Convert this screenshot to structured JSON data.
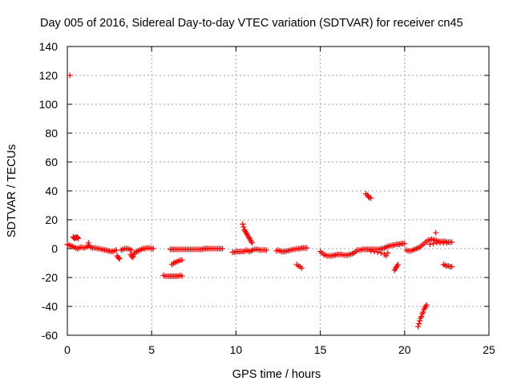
{
  "chart_data": {
    "type": "scatter",
    "title": "Day 005 of 2016, Sidereal Day-to-day VTEC variation (SDTVAR) for receiver cn45",
    "xlabel": "GPS time / hours",
    "ylabel": "SDTVAR / TECUs",
    "xlim": [
      0,
      25
    ],
    "ylim": [
      -60,
      140
    ],
    "xticks": [
      "0",
      "5",
      "10",
      "15",
      "20",
      "25"
    ],
    "yticks": [
      "-60",
      "-40",
      "-20",
      "0",
      "20",
      "40",
      "60",
      "80",
      "100",
      "120",
      "140"
    ],
    "grid": true,
    "legend": "none",
    "series": [
      {
        "color": "#ff0000",
        "marker": "plus",
        "points": [
          [
            0.0,
            3
          ],
          [
            0.1,
            2.5
          ],
          [
            0.15,
            120
          ],
          [
            0.2,
            2
          ],
          [
            0.3,
            1.5
          ],
          [
            0.35,
            8
          ],
          [
            0.4,
            7.5
          ],
          [
            0.45,
            7
          ],
          [
            0.5,
            8
          ],
          [
            0.55,
            7.5
          ],
          [
            0.6,
            8
          ],
          [
            0.65,
            7
          ],
          [
            0.4,
            1
          ],
          [
            0.5,
            0.5
          ],
          [
            0.6,
            0
          ],
          [
            0.7,
            0.5
          ],
          [
            0.8,
            1
          ],
          [
            0.9,
            1
          ],
          [
            1.0,
            0.5
          ],
          [
            1.1,
            1
          ],
          [
            1.2,
            1.5
          ],
          [
            1.3,
            2
          ],
          [
            1.25,
            4
          ],
          [
            1.4,
            1
          ],
          [
            1.5,
            0.5
          ],
          [
            1.6,
            0.5
          ],
          [
            1.7,
            0.5
          ],
          [
            1.8,
            0
          ],
          [
            1.9,
            0
          ],
          [
            2.0,
            -0.5
          ],
          [
            2.1,
            -0.5
          ],
          [
            2.2,
            -1
          ],
          [
            2.3,
            -1
          ],
          [
            2.4,
            -1.5
          ],
          [
            2.5,
            -1.5
          ],
          [
            2.6,
            -2
          ],
          [
            2.7,
            -2
          ],
          [
            2.8,
            -1.5
          ],
          [
            2.9,
            -1
          ],
          [
            2.95,
            -5
          ],
          [
            3.0,
            -6
          ],
          [
            3.05,
            -6.5
          ],
          [
            3.1,
            -7
          ],
          [
            3.2,
            -1
          ],
          [
            3.3,
            -0.5
          ],
          [
            3.4,
            0
          ],
          [
            3.5,
            0
          ],
          [
            3.6,
            0
          ],
          [
            3.7,
            -0.5
          ],
          [
            3.8,
            -1
          ],
          [
            3.75,
            -4
          ],
          [
            3.8,
            -5
          ],
          [
            3.85,
            -6
          ],
          [
            3.9,
            -5.5
          ],
          [
            3.95,
            -4
          ],
          [
            4.0,
            -3
          ],
          [
            4.1,
            -2
          ],
          [
            4.2,
            -1.5
          ],
          [
            4.3,
            -1
          ],
          [
            4.4,
            -0.5
          ],
          [
            4.5,
            0
          ],
          [
            4.6,
            0
          ],
          [
            4.7,
            0.5
          ],
          [
            4.8,
            0.5
          ],
          [
            4.9,
            0.5
          ],
          [
            5.0,
            0
          ],
          [
            5.1,
            0
          ],
          [
            5.7,
            -18.5
          ],
          [
            5.8,
            -19
          ],
          [
            5.9,
            -19
          ],
          [
            6.0,
            -19
          ],
          [
            6.1,
            -19
          ],
          [
            6.2,
            -19
          ],
          [
            6.3,
            -19
          ],
          [
            6.4,
            -19
          ],
          [
            6.5,
            -19
          ],
          [
            6.6,
            -19
          ],
          [
            6.7,
            -18.5
          ],
          [
            6.8,
            -19
          ],
          [
            6.2,
            -11
          ],
          [
            6.3,
            -10
          ],
          [
            6.4,
            -9.5
          ],
          [
            6.5,
            -9
          ],
          [
            6.6,
            -8.5
          ],
          [
            6.7,
            -8
          ],
          [
            6.8,
            -8
          ],
          [
            6.1,
            -0.5
          ],
          [
            6.2,
            -0.5
          ],
          [
            6.3,
            -0.5
          ],
          [
            6.4,
            -0.5
          ],
          [
            6.5,
            -0.5
          ],
          [
            6.6,
            -0.5
          ],
          [
            6.7,
            -0.5
          ],
          [
            6.8,
            -0.5
          ],
          [
            6.9,
            -0.5
          ],
          [
            7.0,
            -0.5
          ],
          [
            7.1,
            -0.5
          ],
          [
            7.2,
            -0.5
          ],
          [
            7.3,
            -0.5
          ],
          [
            7.4,
            -0.5
          ],
          [
            7.5,
            -0.5
          ],
          [
            7.6,
            -0.5
          ],
          [
            7.7,
            -0.5
          ],
          [
            7.8,
            -0.5
          ],
          [
            7.9,
            -0.5
          ],
          [
            8.0,
            -0.5
          ],
          [
            8.1,
            0
          ],
          [
            8.2,
            0
          ],
          [
            8.3,
            0
          ],
          [
            8.4,
            0
          ],
          [
            8.5,
            0
          ],
          [
            8.6,
            0
          ],
          [
            8.7,
            0
          ],
          [
            8.8,
            0
          ],
          [
            8.9,
            0
          ],
          [
            9.0,
            0
          ],
          [
            9.1,
            0
          ],
          [
            9.2,
            0
          ],
          [
            9.8,
            -2.5
          ],
          [
            9.9,
            -2.5
          ],
          [
            10.0,
            -2
          ],
          [
            10.1,
            -2
          ],
          [
            10.2,
            -2
          ],
          [
            10.3,
            -2
          ],
          [
            10.4,
            -2
          ],
          [
            10.5,
            -2
          ],
          [
            10.4,
            17
          ],
          [
            10.45,
            15
          ],
          [
            10.5,
            13
          ],
          [
            10.55,
            12
          ],
          [
            10.6,
            11
          ],
          [
            10.65,
            10
          ],
          [
            10.7,
            9
          ],
          [
            10.75,
            8
          ],
          [
            10.8,
            7
          ],
          [
            10.85,
            6
          ],
          [
            10.9,
            5
          ],
          [
            10.95,
            4
          ],
          [
            10.6,
            -1
          ],
          [
            10.7,
            -1.5
          ],
          [
            10.8,
            -2
          ],
          [
            10.9,
            -1.5
          ],
          [
            11.0,
            -1
          ],
          [
            11.1,
            -0.5
          ],
          [
            11.2,
            -0.5
          ],
          [
            11.3,
            -0.5
          ],
          [
            11.4,
            -1
          ],
          [
            11.5,
            -1
          ],
          [
            11.6,
            -1
          ],
          [
            11.7,
            -1
          ],
          [
            11.8,
            -1
          ],
          [
            12.4,
            -1.5
          ],
          [
            12.5,
            -1
          ],
          [
            12.6,
            -1.5
          ],
          [
            12.7,
            -2
          ],
          [
            12.8,
            -2
          ],
          [
            12.9,
            -2
          ],
          [
            13.0,
            -1.5
          ],
          [
            13.1,
            -1.5
          ],
          [
            13.2,
            -1
          ],
          [
            13.3,
            -1
          ],
          [
            13.4,
            -0.5
          ],
          [
            13.5,
            -0.5
          ],
          [
            13.6,
            0
          ],
          [
            13.7,
            0
          ],
          [
            13.8,
            0
          ],
          [
            13.9,
            0.5
          ],
          [
            14.0,
            0.5
          ],
          [
            14.1,
            0.5
          ],
          [
            14.2,
            0.5
          ],
          [
            13.6,
            -11
          ],
          [
            13.7,
            -12
          ],
          [
            13.8,
            -12.5
          ],
          [
            13.9,
            -13.5
          ],
          [
            15.0,
            -2
          ],
          [
            15.1,
            -3
          ],
          [
            15.2,
            -4
          ],
          [
            15.3,
            -4.5
          ],
          [
            15.4,
            -5
          ],
          [
            15.5,
            -5
          ],
          [
            15.6,
            -5
          ],
          [
            15.7,
            -5
          ],
          [
            15.8,
            -4.5
          ],
          [
            15.9,
            -4.5
          ],
          [
            16.0,
            -4
          ],
          [
            16.1,
            -4
          ],
          [
            16.2,
            -4
          ],
          [
            16.3,
            -4
          ],
          [
            16.4,
            -4.5
          ],
          [
            16.5,
            -4.5
          ],
          [
            16.6,
            -4.5
          ],
          [
            16.7,
            -4
          ],
          [
            16.8,
            -4
          ],
          [
            16.9,
            -3.5
          ],
          [
            17.0,
            -3
          ],
          [
            17.1,
            -2
          ],
          [
            17.2,
            -1
          ],
          [
            17.3,
            -1
          ],
          [
            17.4,
            -1
          ],
          [
            17.5,
            -0.5
          ],
          [
            17.6,
            -0.5
          ],
          [
            17.7,
            -0.5
          ],
          [
            17.8,
            -0.5
          ],
          [
            17.9,
            -0.5
          ],
          [
            18.0,
            -0.5
          ],
          [
            18.1,
            -0.5
          ],
          [
            18.2,
            -0.5
          ],
          [
            18.3,
            -0.5
          ],
          [
            18.4,
            -0.5
          ],
          [
            18.5,
            -0.5
          ],
          [
            18.6,
            0
          ],
          [
            18.7,
            0
          ],
          [
            18.8,
            0.5
          ],
          [
            18.9,
            1
          ],
          [
            19.0,
            1.5
          ],
          [
            19.1,
            2
          ],
          [
            19.2,
            2
          ],
          [
            19.3,
            2.5
          ],
          [
            19.4,
            2.5
          ],
          [
            19.5,
            3
          ],
          [
            19.6,
            3
          ],
          [
            19.7,
            3
          ],
          [
            19.8,
            3.5
          ],
          [
            19.9,
            3.5
          ],
          [
            20.0,
            3.5
          ],
          [
            18.0,
            -1.5
          ],
          [
            18.2,
            -2
          ],
          [
            18.4,
            -2.5
          ],
          [
            18.6,
            -3
          ],
          [
            18.8,
            -4
          ],
          [
            18.9,
            -5
          ],
          [
            19.0,
            -3
          ],
          [
            17.7,
            38
          ],
          [
            17.8,
            37
          ],
          [
            17.85,
            36
          ],
          [
            17.9,
            35.5
          ],
          [
            18.0,
            35
          ],
          [
            19.4,
            -15
          ],
          [
            19.45,
            -14
          ],
          [
            19.5,
            -13
          ],
          [
            19.55,
            -12
          ],
          [
            19.6,
            -11
          ],
          [
            20.1,
            -1
          ],
          [
            20.2,
            -1.5
          ],
          [
            20.3,
            -1.5
          ],
          [
            20.4,
            -1.5
          ],
          [
            20.5,
            -1
          ],
          [
            20.6,
            -0.5
          ],
          [
            20.7,
            0
          ],
          [
            20.8,
            0.5
          ],
          [
            20.9,
            1
          ],
          [
            21.0,
            2
          ],
          [
            21.1,
            3
          ],
          [
            21.2,
            4
          ],
          [
            21.3,
            5
          ],
          [
            21.4,
            6
          ],
          [
            21.5,
            6
          ],
          [
            21.6,
            6.5
          ],
          [
            21.7,
            6
          ],
          [
            21.8,
            6
          ],
          [
            21.9,
            5.5
          ],
          [
            22.0,
            5
          ],
          [
            22.1,
            5
          ],
          [
            22.2,
            5
          ],
          [
            22.3,
            5
          ],
          [
            22.4,
            5
          ],
          [
            22.5,
            4.5
          ],
          [
            22.6,
            4.5
          ],
          [
            22.7,
            4.5
          ],
          [
            22.8,
            4.5
          ],
          [
            21.85,
            11
          ],
          [
            21.5,
            3
          ],
          [
            21.7,
            3.5
          ],
          [
            21.9,
            4
          ],
          [
            22.1,
            4
          ],
          [
            22.3,
            4
          ],
          [
            22.5,
            4
          ],
          [
            20.8,
            -54
          ],
          [
            20.85,
            -52
          ],
          [
            20.9,
            -50
          ],
          [
            20.95,
            -48
          ],
          [
            21.0,
            -47
          ],
          [
            21.05,
            -45
          ],
          [
            21.1,
            -44
          ],
          [
            21.15,
            -42
          ],
          [
            21.2,
            -41
          ],
          [
            21.25,
            -40
          ],
          [
            21.3,
            -39
          ],
          [
            22.3,
            -11
          ],
          [
            22.4,
            -11.5
          ],
          [
            22.5,
            -12
          ],
          [
            22.6,
            -12
          ],
          [
            22.7,
            -12.5
          ],
          [
            22.8,
            -12.5
          ]
        ]
      }
    ]
  }
}
